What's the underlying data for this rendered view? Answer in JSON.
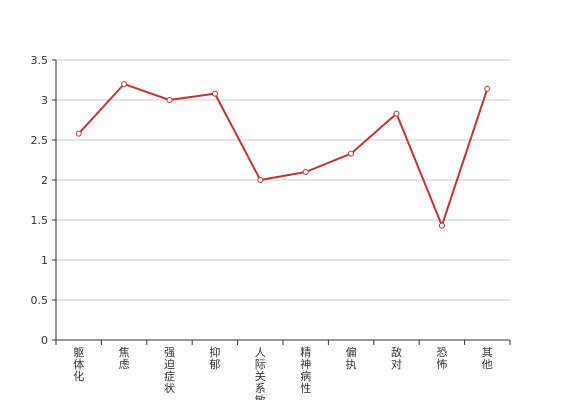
{
  "chart_data": {
    "type": "line",
    "categories": [
      "躯体化",
      "焦虑",
      "强迫症状",
      "抑郁",
      "人际关系敏感",
      "精神病性",
      "偏执",
      "敌对",
      "恐怖",
      "其他"
    ],
    "values": [
      2.58,
      3.2,
      3.0,
      3.08,
      2.0,
      2.1,
      2.33,
      2.83,
      1.43,
      3.14
    ],
    "yticks": [
      "0",
      "0.5",
      "1",
      "1.5",
      "2",
      "2.5",
      "3",
      "3.5"
    ],
    "ylim": [
      0,
      3.5
    ],
    "grid": true,
    "colors": {
      "line": "#c23531",
      "grid": "#cccccc",
      "axis": "#333333"
    }
  }
}
